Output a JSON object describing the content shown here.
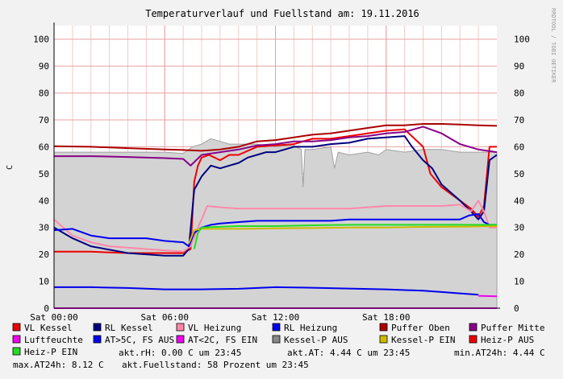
{
  "chart_data": {
    "type": "line",
    "title": "Temperaturverlauf und Fuellstand am: 19.11.2016",
    "ylabel": "C",
    "watermark": "RRDTOOL / TOBI OETIKER",
    "ylim": [
      0,
      105
    ],
    "xlim": [
      0,
      24
    ],
    "yticks": [
      0,
      10,
      20,
      30,
      40,
      50,
      60,
      70,
      80,
      90,
      100
    ],
    "xticks": [
      {
        "hour": 0,
        "label": "Sat 00:00"
      },
      {
        "hour": 6,
        "label": "Sat 06:00"
      },
      {
        "hour": 12,
        "label": "Sat 12:00"
      },
      {
        "hour": 18,
        "label": "Sat 18:00"
      }
    ],
    "grid": true,
    "legend_position": "bottom",
    "area": {
      "name": "Fuellstand",
      "color": "#d3d3d3",
      "stroke": "#a0a0a0",
      "points": [
        [
          0,
          58
        ],
        [
          1,
          58
        ],
        [
          2,
          58
        ],
        [
          3,
          58
        ],
        [
          4,
          58
        ],
        [
          5,
          58
        ],
        [
          6,
          58
        ],
        [
          7,
          57.5
        ],
        [
          7.5,
          60
        ],
        [
          8,
          61
        ],
        [
          8.5,
          63
        ],
        [
          9,
          62
        ],
        [
          9.5,
          61
        ],
        [
          10,
          61
        ],
        [
          11,
          61
        ],
        [
          12,
          60
        ],
        [
          13,
          60.5
        ],
        [
          13.4,
          59
        ],
        [
          13.5,
          45
        ],
        [
          13.6,
          59
        ],
        [
          14,
          59
        ],
        [
          15,
          60
        ],
        [
          15.2,
          52
        ],
        [
          15.4,
          58
        ],
        [
          16,
          57
        ],
        [
          17,
          58
        ],
        [
          17.6,
          57
        ],
        [
          18,
          59
        ],
        [
          19,
          58
        ],
        [
          20,
          59
        ],
        [
          21,
          59
        ],
        [
          22,
          58
        ],
        [
          23,
          58
        ],
        [
          24,
          58
        ]
      ]
    },
    "series": [
      {
        "name": "VL Kessel",
        "color": "#ee0000",
        "points": [
          [
            0,
            21
          ],
          [
            2,
            21
          ],
          [
            4,
            20.5
          ],
          [
            6,
            20.5
          ],
          [
            7,
            20.5
          ],
          [
            7.4,
            22
          ],
          [
            7.6,
            47
          ],
          [
            7.8,
            53
          ],
          [
            8,
            56
          ],
          [
            8.4,
            57
          ],
          [
            9,
            55
          ],
          [
            9.5,
            57
          ],
          [
            10,
            57
          ],
          [
            11,
            60
          ],
          [
            12,
            60.5
          ],
          [
            13,
            61
          ],
          [
            14,
            63
          ],
          [
            15,
            63
          ],
          [
            16,
            64
          ],
          [
            17,
            65
          ],
          [
            18,
            66
          ],
          [
            19,
            66.5
          ],
          [
            20,
            60
          ],
          [
            20.4,
            50
          ],
          [
            21,
            45
          ],
          [
            22,
            40
          ],
          [
            22.6,
            37
          ],
          [
            23,
            34
          ],
          [
            23.3,
            38
          ],
          [
            23.6,
            60
          ],
          [
            24,
            60
          ]
        ]
      },
      {
        "name": "RL Kessel",
        "color": "#000080",
        "points": [
          [
            0,
            30
          ],
          [
            1,
            26
          ],
          [
            2,
            23
          ],
          [
            4,
            20.5
          ],
          [
            6,
            19.5
          ],
          [
            7,
            19.5
          ],
          [
            7.3,
            22
          ],
          [
            7.6,
            44
          ],
          [
            8,
            49
          ],
          [
            8.5,
            53
          ],
          [
            9,
            52
          ],
          [
            9.5,
            53
          ],
          [
            10,
            54
          ],
          [
            10.5,
            56
          ],
          [
            11,
            57
          ],
          [
            11.5,
            58
          ],
          [
            12,
            58
          ],
          [
            12.5,
            59
          ],
          [
            13,
            60
          ],
          [
            14,
            60
          ],
          [
            15,
            61
          ],
          [
            16,
            61.5
          ],
          [
            17,
            63
          ],
          [
            18,
            63.5
          ],
          [
            19,
            64
          ],
          [
            19.4,
            60
          ],
          [
            20,
            55
          ],
          [
            20.5,
            52
          ],
          [
            21,
            46
          ],
          [
            22,
            40
          ],
          [
            22.6,
            36
          ],
          [
            23,
            33
          ],
          [
            23.3,
            36
          ],
          [
            23.6,
            55
          ],
          [
            24,
            57
          ]
        ]
      },
      {
        "name": "VL Heizung",
        "color": "#ff88aa",
        "points": [
          [
            0,
            33
          ],
          [
            1,
            27
          ],
          [
            2,
            24.5
          ],
          [
            3,
            23
          ],
          [
            4,
            22.5
          ],
          [
            5,
            22
          ],
          [
            6,
            21.5
          ],
          [
            7,
            21
          ],
          [
            7.4,
            23
          ],
          [
            7.8,
            30
          ],
          [
            8,
            33
          ],
          [
            8.3,
            38
          ],
          [
            9,
            37.5
          ],
          [
            10,
            37
          ],
          [
            11,
            37
          ],
          [
            12,
            37
          ],
          [
            13,
            37
          ],
          [
            14,
            37
          ],
          [
            15,
            37
          ],
          [
            16,
            37
          ],
          [
            17,
            37.5
          ],
          [
            18,
            38
          ],
          [
            19,
            38
          ],
          [
            20,
            38
          ],
          [
            21,
            38
          ],
          [
            22,
            38.5
          ],
          [
            22.6,
            36
          ],
          [
            23,
            40
          ],
          [
            23.3,
            36
          ],
          [
            23.6,
            30
          ],
          [
            24,
            30
          ]
        ]
      },
      {
        "name": "RL Heizung",
        "color": "#0000ee",
        "points": [
          [
            0,
            29
          ],
          [
            1,
            29.5
          ],
          [
            2,
            27
          ],
          [
            3,
            26
          ],
          [
            4,
            26
          ],
          [
            5,
            26
          ],
          [
            6,
            25
          ],
          [
            7,
            24.5
          ],
          [
            7.3,
            23
          ],
          [
            7.6,
            28
          ],
          [
            8,
            30
          ],
          [
            8.5,
            31
          ],
          [
            9,
            31.5
          ],
          [
            10,
            32
          ],
          [
            11,
            32.5
          ],
          [
            12,
            32.5
          ],
          [
            13,
            32.5
          ],
          [
            14,
            32.5
          ],
          [
            15,
            32.5
          ],
          [
            16,
            33
          ],
          [
            17,
            33
          ],
          [
            18,
            33
          ],
          [
            19,
            33
          ],
          [
            20,
            33
          ],
          [
            21,
            33
          ],
          [
            22,
            33
          ],
          [
            22.5,
            34.5
          ],
          [
            23,
            35
          ],
          [
            23.3,
            32
          ],
          [
            23.6,
            31
          ],
          [
            24,
            31
          ]
        ]
      },
      {
        "name": "Puffer Oben",
        "color": "#aa0000",
        "points": [
          [
            0,
            60.2
          ],
          [
            2,
            60
          ],
          [
            4,
            59.5
          ],
          [
            6,
            59
          ],
          [
            7,
            58.8
          ],
          [
            8,
            58.5
          ],
          [
            9,
            59
          ],
          [
            10,
            60
          ],
          [
            11,
            62
          ],
          [
            12,
            62.5
          ],
          [
            13,
            63.5
          ],
          [
            14,
            64.5
          ],
          [
            15,
            65
          ],
          [
            16,
            66
          ],
          [
            17,
            67
          ],
          [
            18,
            68
          ],
          [
            19,
            68
          ],
          [
            20,
            68.5
          ],
          [
            21,
            68.5
          ],
          [
            22,
            68.3
          ],
          [
            23,
            68
          ],
          [
            24,
            67.8
          ]
        ]
      },
      {
        "name": "Puffer Mitte",
        "color": "#880088",
        "points": [
          [
            0,
            56.5
          ],
          [
            2,
            56.5
          ],
          [
            4,
            56.2
          ],
          [
            6,
            55.8
          ],
          [
            7,
            55.5
          ],
          [
            7.4,
            53
          ],
          [
            8,
            57
          ],
          [
            9,
            58
          ],
          [
            10,
            59
          ],
          [
            11,
            60.5
          ],
          [
            12,
            61
          ],
          [
            13,
            62
          ],
          [
            14,
            62
          ],
          [
            15,
            62.5
          ],
          [
            16,
            63.5
          ],
          [
            17,
            64
          ],
          [
            18,
            65
          ],
          [
            19,
            65.5
          ],
          [
            20,
            67.5
          ],
          [
            21,
            65
          ],
          [
            22,
            61
          ],
          [
            23,
            59
          ],
          [
            24,
            58
          ]
        ]
      },
      {
        "name": "Luftfeuchte",
        "color": "#ee00ee",
        "points": [
          [
            0,
            0
          ],
          [
            24,
            0
          ]
        ]
      },
      {
        "name": "AT>5C, FS AUS",
        "color": "#0000ee",
        "points": [
          [
            0,
            7.8
          ],
          [
            2,
            7.8
          ],
          [
            4,
            7.5
          ],
          [
            6,
            7
          ],
          [
            8,
            7
          ],
          [
            10,
            7.2
          ],
          [
            12,
            7.8
          ],
          [
            14,
            7.6
          ],
          [
            16,
            7.3
          ],
          [
            18,
            7
          ],
          [
            20,
            6.5
          ],
          [
            21,
            6
          ],
          [
            22,
            5.5
          ],
          [
            23,
            5
          ]
        ]
      },
      {
        "name": "AT<2C, FS EIN",
        "color": "#ee00ee",
        "points": [
          [
            23,
            4.6
          ],
          [
            24,
            4.4
          ]
        ]
      },
      {
        "name": "Kessel-P AUS",
        "color": "#888888",
        "points": []
      },
      {
        "name": "Kessel-P EIN",
        "color": "#ccbb00",
        "points": [
          [
            7.3,
            24
          ],
          [
            7.6,
            29
          ],
          [
            8,
            29.5
          ],
          [
            10,
            29.5
          ],
          [
            12,
            29.7
          ],
          [
            14,
            29.8
          ],
          [
            16,
            30
          ],
          [
            18,
            30
          ],
          [
            20,
            30.2
          ],
          [
            22,
            30.3
          ],
          [
            24,
            30.5
          ]
        ]
      },
      {
        "name": "Heiz-P AUS",
        "color": "#ee0000",
        "points": []
      },
      {
        "name": "Heiz-P EIN",
        "color": "#22dd22",
        "points": [
          [
            7.6,
            22
          ],
          [
            7.8,
            28
          ],
          [
            8,
            30
          ],
          [
            10,
            30.5
          ],
          [
            12,
            30.5
          ],
          [
            14,
            30.8
          ],
          [
            16,
            31
          ],
          [
            18,
            31
          ],
          [
            20,
            31
          ],
          [
            22,
            31
          ],
          [
            24,
            31
          ]
        ]
      }
    ],
    "legend": [
      {
        "label": "VL Kessel",
        "color": "#ee0000"
      },
      {
        "label": "RL Kessel",
        "color": "#000080"
      },
      {
        "label": "VL Heizung",
        "color": "#ff88aa"
      },
      {
        "label": "RL Heizung",
        "color": "#0000ee"
      },
      {
        "label": "Puffer Oben",
        "color": "#aa0000"
      },
      {
        "label": "Puffer Mitte",
        "color": "#880088"
      },
      {
        "label": "Luftfeuchte",
        "color": "#ee00ee"
      },
      {
        "label": "AT>5C, FS AUS",
        "color": "#0000ee"
      },
      {
        "label": "AT<2C, FS EIN",
        "color": "#ee00ee"
      },
      {
        "label": "Kessel-P AUS",
        "color": "#888888"
      },
      {
        "label": "Kessel-P EIN",
        "color": "#ccbb00"
      },
      {
        "label": "Heiz-P AUS",
        "color": "#ee0000"
      },
      {
        "label": "Heiz-P EIN",
        "color": "#22dd22"
      }
    ],
    "stats": {
      "akt_rh": "akt.rH: 0.00 C um 23:45",
      "akt_at": "akt.AT: 4.44 C um 23:45",
      "min_at24h": "min.AT24h: 4.44 C",
      "max_at24h": "max.AT24h: 8.12 C",
      "akt_fuellstand": "akt.Fuellstand:   58 Prozent um 23:45"
    }
  }
}
